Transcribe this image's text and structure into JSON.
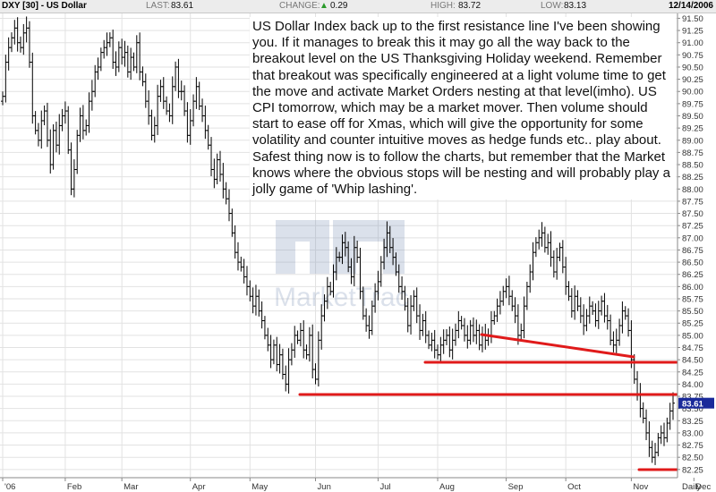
{
  "header": {
    "symbol": "DXY [30] - US Dollar",
    "last_label": "LAST:",
    "last_value": "83.61",
    "change_label": "CHANGE:",
    "change_value": "0.29",
    "high_label": "HIGH:",
    "high_value": "83.72",
    "low_label": "LOW:",
    "low_value": "83.13",
    "date": "12/14/2006"
  },
  "watermark": "MarketTrac",
  "annotation": "US Dollar Index back up to the first resistance line I've been showing you. If it manages to break this it may go all the way back to the breakout level on the US Thanksgiving Holiday weekend. Remember that breakout was specifically engineered at a light volume time to get the move and activate  Market Orders nesting at that level(imho). US CPI tomorrow, which may be a market mover. Then volume should start to ease off for Xmas, which will give the opportunity for some volatility and counter intuitive moves as hedge funds etc.. play about. Safest thing now is to follow the charts, but remember that the Market knows where the obvious stops will be nesting and will probably play a jolly game of 'Whip lashing'.",
  "chart_data": {
    "type": "ohlc",
    "title": "DXY [30] - US Dollar",
    "ylim": [
      82.1,
      91.6
    ],
    "y_ticks": [
      82.25,
      82.5,
      82.75,
      83.0,
      83.25,
      83.5,
      83.75,
      84.0,
      84.25,
      84.5,
      84.75,
      85.0,
      85.25,
      85.5,
      85.75,
      86.0,
      86.25,
      86.5,
      86.75,
      87.0,
      87.25,
      87.5,
      87.75,
      88.0,
      88.25,
      88.5,
      88.75,
      89.0,
      89.25,
      89.5,
      89.75,
      90.0,
      90.25,
      90.5,
      90.75,
      91.0,
      91.25,
      91.5
    ],
    "y_tick_labels": [
      "82.25",
      "82.50",
      "82.75",
      "83.00",
      "83.25",
      "83.50",
      "83.75",
      "84.00",
      "84.25",
      "84.50",
      "84.75",
      "85.00",
      "85.25",
      "85.50",
      "85.75",
      "86.00",
      "86.25",
      "86.50",
      "86.75",
      "87.00",
      "87.25",
      "87.50",
      "87.75",
      "88.00",
      "88.25",
      "88.50",
      "88.75",
      "89.00",
      "89.25",
      "89.50",
      "89.75",
      "90.00",
      "90.25",
      "90.50",
      "90.75",
      "91.00",
      "91.25",
      "91.50"
    ],
    "x_labels": [
      "'06",
      "Feb",
      "Mar",
      "Apr",
      "May",
      "Jun",
      "Jul",
      "Aug",
      "Sep",
      "Oct",
      "Nov",
      "Dec",
      "Daily"
    ],
    "month_start_index": [
      0,
      21,
      40,
      63,
      83,
      105,
      126,
      146,
      169,
      189,
      211,
      232
    ],
    "last_price_label": "83.61",
    "grid": true,
    "series": [
      {
        "values": [
          89.9,
          90.6,
          90.9,
          91.1,
          91.3,
          91.0,
          90.9,
          91.2,
          91.3,
          90.6,
          89.5,
          89.2,
          89.0,
          89.4,
          89.6,
          89.0,
          88.5,
          89.2,
          88.9,
          89.3,
          89.5,
          89.6,
          88.8,
          88.0,
          88.4,
          89.1,
          89.5,
          89.2,
          89.3,
          89.8,
          90.0,
          90.4,
          90.5,
          90.8,
          90.9,
          91.0,
          91.1,
          90.6,
          90.5,
          90.9,
          90.7,
          90.8,
          90.4,
          90.7,
          90.5,
          91.0,
          90.4,
          90.2,
          89.8,
          89.5,
          89.1,
          89.3,
          89.9,
          90.1,
          89.8,
          89.6,
          89.5,
          90.1,
          90.5,
          90.0,
          90.0,
          89.6,
          89.1,
          89.4,
          89.8,
          90.1,
          89.7,
          89.5,
          89.2,
          88.9,
          88.4,
          88.2,
          88.6,
          88.3,
          88.0,
          87.8,
          87.5,
          87.1,
          86.7,
          86.5,
          86.4,
          86.2,
          86.0,
          85.8,
          85.6,
          85.8,
          85.5,
          85.3,
          85.0,
          84.8,
          84.5,
          84.8,
          84.4,
          84.6,
          84.2,
          84.0,
          84.5,
          84.7,
          85.0,
          84.9,
          85.1,
          84.7,
          84.6,
          85.0,
          84.3,
          84.1,
          84.9,
          85.4,
          85.7,
          86.0,
          85.9,
          86.3,
          86.6,
          86.6,
          86.9,
          86.8,
          86.4,
          86.2,
          86.8,
          86.6,
          85.9,
          85.4,
          85.2,
          85.1,
          85.6,
          85.9,
          86.1,
          86.5,
          86.8,
          87.1,
          86.8,
          86.6,
          86.3,
          86.0,
          85.9,
          85.6,
          85.2,
          85.6,
          85.8,
          85.4,
          85.1,
          85.3,
          85.0,
          84.8,
          84.9,
          84.7,
          84.6,
          84.8,
          84.9,
          85.0,
          84.7,
          84.9,
          85.1,
          85.3,
          85.2,
          85.0,
          84.9,
          85.2,
          85.0,
          85.1,
          84.8,
          85.0,
          84.9,
          85.0,
          85.3,
          85.4,
          85.6,
          85.7,
          85.9,
          86.0,
          85.8,
          85.6,
          85.4,
          85.0,
          85.1,
          85.6,
          86.0,
          86.3,
          86.7,
          86.9,
          87.0,
          87.1,
          86.8,
          86.9,
          86.6,
          86.3,
          86.6,
          86.8,
          86.4,
          86.0,
          85.8,
          85.5,
          85.8,
          85.6,
          85.4,
          85.2,
          85.4,
          85.6,
          85.5,
          85.3,
          85.5,
          85.7,
          85.4,
          85.3,
          84.9,
          84.8,
          84.9,
          85.2,
          85.5,
          85.4,
          85.1,
          84.5,
          84.1,
          83.8,
          83.5,
          83.3,
          83.0,
          82.7,
          82.5,
          82.6,
          82.9,
          83.0,
          82.9,
          83.2,
          83.45,
          83.61
        ]
      }
    ]
  },
  "annotations_lines": [
    "support-line-jun",
    "support-line-aug",
    "trendline-sep-nov",
    "support-line-dec"
  ]
}
